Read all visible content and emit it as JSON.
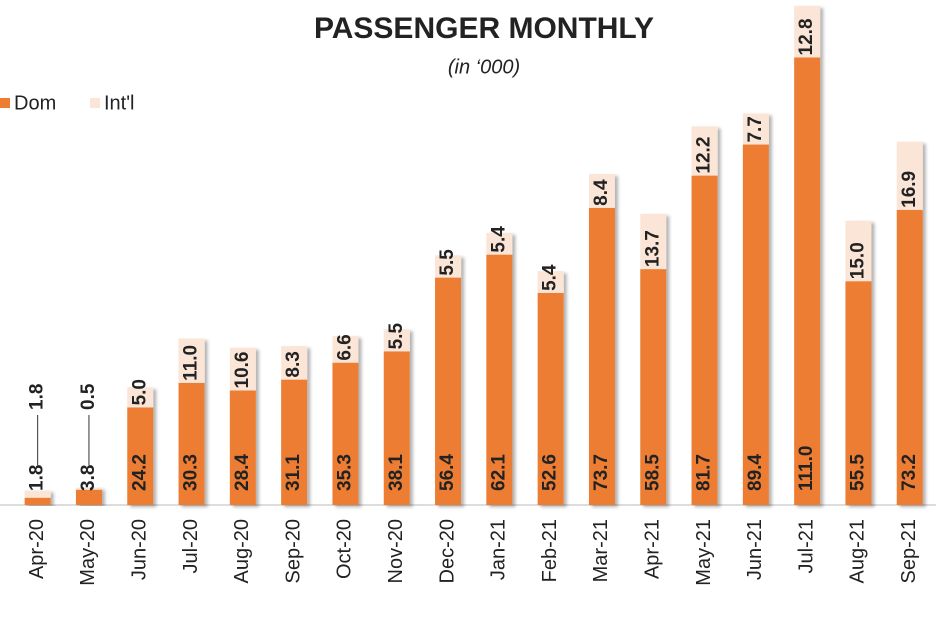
{
  "chart_data": {
    "type": "bar",
    "stacked": true,
    "title": "PASSENGER MONTHLY",
    "subtitle": "(in ‘000)",
    "categories": [
      "Apr-20",
      "May-20",
      "Jun-20",
      "Jul-20",
      "Aug-20",
      "Sep-20",
      "Oct-20",
      "Nov-20",
      "Dec-20",
      "Jan-21",
      "Feb-21",
      "Mar-21",
      "Apr-21",
      "May-21",
      "Jun-21",
      "Jul-21",
      "Aug-21",
      "Sep-21"
    ],
    "series": [
      {
        "name": "Dom",
        "color": "#ED7D31",
        "values": [
          1.8,
          3.8,
          24.2,
          30.3,
          28.4,
          31.1,
          35.3,
          38.1,
          56.4,
          62.1,
          52.6,
          73.7,
          58.5,
          81.7,
          89.4,
          111.0,
          55.5,
          73.2
        ],
        "value_labels": [
          "1.8",
          "3.8",
          "24.2",
          "30.3",
          "28.4",
          "31.1",
          "35.3",
          "38.1",
          "56.4",
          "62.1",
          "52.6",
          "73.7",
          "58.5",
          "81.7",
          "89.4",
          "111.0",
          "55.5",
          "73.2"
        ]
      },
      {
        "name": "Int'l",
        "color": "#FBE5D6",
        "values": [
          1.8,
          0.5,
          5.0,
          11.0,
          10.6,
          8.3,
          6.6,
          5.5,
          5.5,
          5.4,
          5.4,
          8.4,
          13.7,
          12.2,
          7.7,
          12.8,
          15.0,
          16.9
        ],
        "value_labels": [
          "1.8",
          "0.5",
          "5.0",
          "11.0",
          "10.6",
          "8.3",
          "6.6",
          "5.5",
          "5.5",
          "5.4",
          "5.4",
          "8.4",
          "13.7",
          "12.2",
          "7.7",
          "12.8",
          "15.0",
          "16.9"
        ]
      }
    ],
    "ylim": [
      0,
      125
    ],
    "legend": "top-left"
  }
}
